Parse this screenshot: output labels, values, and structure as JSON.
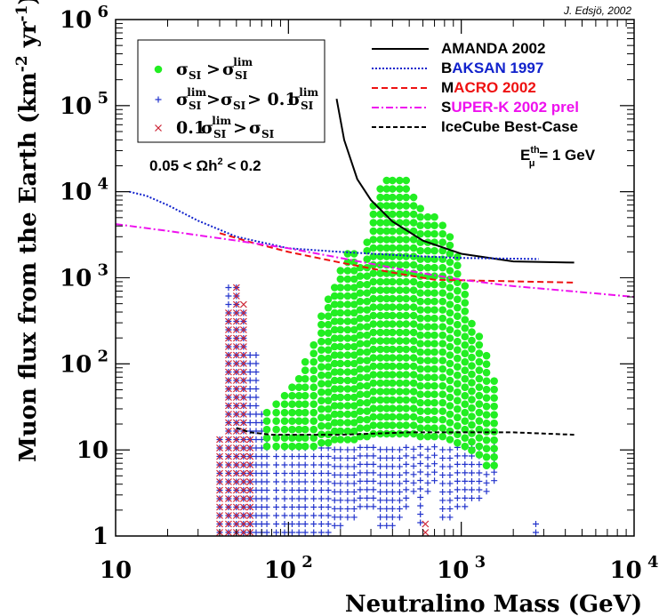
{
  "chart_data": {
    "type": "scatter",
    "credit": "J. Edsjö, 2002",
    "xlabel": "Neutralino Mass (GeV)",
    "ylabel": "Muon flux from the Earth (km^-2 yr^-1)",
    "xscale": "log",
    "yscale": "log",
    "xlim": [
      10,
      10000
    ],
    "ylim": [
      1,
      1000000
    ],
    "x_ticks": [
      {
        "value": 10,
        "base": "10",
        "exp": ""
      },
      {
        "value": 100,
        "base": "10",
        "exp": "2"
      },
      {
        "value": 1000,
        "base": "10",
        "exp": "3"
      },
      {
        "value": 10000,
        "base": "10",
        "exp": "4"
      }
    ],
    "y_ticks": [
      {
        "value": 1,
        "base": "1",
        "exp": ""
      },
      {
        "value": 10,
        "base": "10",
        "exp": ""
      },
      {
        "value": 100,
        "base": "10",
        "exp": "2"
      },
      {
        "value": 1000,
        "base": "10",
        "exp": "3"
      },
      {
        "value": 10000,
        "base": "10",
        "exp": "4"
      },
      {
        "value": 100000,
        "base": "10",
        "exp": "5"
      },
      {
        "value": 1000000,
        "base": "10",
        "exp": "6"
      }
    ],
    "legend_models": {
      "position": "top-left",
      "entries": [
        {
          "marker": "dot",
          "color": "#22ee22",
          "label": "σSI > σSI(lim)"
        },
        {
          "marker": "plus",
          "color": "#2233cc",
          "label": "σSI(lim) > σSI > 0.1σSI(lim)"
        },
        {
          "marker": "cross",
          "color": "#cc2233",
          "label": "0.1σSI(lim) > σSI"
        }
      ]
    },
    "annotation": "0.05 < Ωh² < 0.2",
    "threshold": "Eμth = 1 GeV",
    "legend_limits": {
      "position": "top-right",
      "entries": [
        {
          "name": "AMANDA 2002",
          "first": "AMANDA 2002",
          "rest": "",
          "first_color": "#000000",
          "rest_color": "#000000",
          "line_color": "#000000",
          "dash": ""
        },
        {
          "name": "BAKSAN 1997",
          "first": "B",
          "rest": "AKSAN 1997",
          "first_color": "#000000",
          "rest_color": "#1122cc",
          "line_color": "#1122cc",
          "dash": "2,2"
        },
        {
          "name": "MACRO 2002",
          "first": "M",
          "rest": "ACRO 2002",
          "first_color": "#000000",
          "rest_color": "#ee1111",
          "line_color": "#ee1111",
          "dash": "7,4"
        },
        {
          "name": "SUPER-K 2002 prel",
          "first": "S",
          "rest": "UPER-K 2002 prel",
          "first_color": "#000000",
          "rest_color": "#ee11ee",
          "line_color": "#ee11ee",
          "dash": "8,3,2,3"
        },
        {
          "name": "IceCube Best-Case",
          "first": "IceCube Best-Case",
          "rest": "",
          "first_color": "#000000",
          "rest_color": "#000000",
          "line_color": "#000000",
          "dash": "5,3"
        }
      ]
    },
    "series": [
      {
        "name": "AMANDA 2002",
        "color": "#000000",
        "dash": "",
        "points": [
          [
            190,
            120000
          ],
          [
            210,
            40000
          ],
          [
            250,
            14000
          ],
          [
            300,
            8000
          ],
          [
            400,
            4500
          ],
          [
            600,
            2700
          ],
          [
            1000,
            1900
          ],
          [
            2000,
            1550
          ],
          [
            4500,
            1500
          ]
        ]
      },
      {
        "name": "BAKSAN 1997",
        "color": "#1122cc",
        "dash": "2,2",
        "points": [
          [
            12,
            10000
          ],
          [
            15,
            9000
          ],
          [
            20,
            7000
          ],
          [
            30,
            4600
          ],
          [
            50,
            3000
          ],
          [
            100,
            2200
          ],
          [
            200,
            2000
          ],
          [
            500,
            1800
          ],
          [
            1000,
            1700
          ],
          [
            2800,
            1650
          ]
        ]
      },
      {
        "name": "MACRO 2002",
        "color": "#ee1111",
        "dash": "7,4",
        "points": [
          [
            40,
            3300
          ],
          [
            60,
            2600
          ],
          [
            100,
            2000
          ],
          [
            200,
            1500
          ],
          [
            400,
            1150
          ],
          [
            700,
            950
          ],
          [
            1500,
            920
          ],
          [
            4500,
            880
          ]
        ]
      },
      {
        "name": "SUPER-K 2002 prel",
        "color": "#ee11ee",
        "dash": "8,3,2,3",
        "points": [
          [
            10,
            4200
          ],
          [
            20,
            3500
          ],
          [
            50,
            2700
          ],
          [
            100,
            2200
          ],
          [
            200,
            1700
          ],
          [
            500,
            1200
          ],
          [
            1000,
            950
          ],
          [
            2000,
            800
          ],
          [
            5000,
            680
          ],
          [
            10000,
            600
          ]
        ]
      },
      {
        "name": "IceCube Best-Case",
        "color": "#000000",
        "dash": "5,3",
        "points": [
          [
            50,
            18
          ],
          [
            60,
            16
          ],
          [
            80,
            15
          ],
          [
            100,
            15
          ],
          [
            200,
            15
          ],
          [
            500,
            16
          ],
          [
            1000,
            16
          ],
          [
            2000,
            16
          ],
          [
            4500,
            15
          ]
        ]
      }
    ],
    "scatter_regions": {
      "green": [
        [
          75,
          10,
          30
        ],
        [
          85,
          10,
          40
        ],
        [
          95,
          10,
          50
        ],
        [
          105,
          10,
          60
        ],
        [
          115,
          10,
          80
        ],
        [
          125,
          10,
          110
        ],
        [
          140,
          10,
          170
        ],
        [
          155,
          11,
          400
        ],
        [
          170,
          11,
          600
        ],
        [
          185,
          12,
          900
        ],
        [
          200,
          12,
          1200
        ],
        [
          220,
          12,
          2000
        ],
        [
          240,
          12,
          2000
        ],
        [
          260,
          13,
          1400
        ],
        [
          285,
          13,
          2500
        ],
        [
          310,
          14,
          8000
        ],
        [
          340,
          14,
          12000
        ],
        [
          370,
          14,
          14000
        ],
        [
          400,
          14,
          14000
        ],
        [
          440,
          14,
          14000
        ],
        [
          480,
          14,
          13000
        ],
        [
          530,
          14,
          9000
        ],
        [
          580,
          13,
          7000
        ],
        [
          640,
          13,
          6000
        ],
        [
          700,
          13,
          5000
        ],
        [
          780,
          13,
          4000
        ],
        [
          860,
          12,
          3000
        ],
        [
          950,
          11,
          2000
        ],
        [
          1050,
          10,
          900
        ],
        [
          1150,
          9,
          350
        ],
        [
          1270,
          8,
          200
        ],
        [
          1400,
          6,
          120
        ],
        [
          1550,
          6,
          70
        ]
      ],
      "blue": [
        [
          40,
          1,
          15
        ],
        [
          45,
          1,
          900
        ],
        [
          50,
          1,
          900
        ],
        [
          55,
          1,
          400
        ],
        [
          60,
          1,
          140
        ],
        [
          65,
          1,
          140
        ],
        [
          70,
          1,
          30
        ],
        [
          75,
          1,
          15
        ],
        [
          85,
          1,
          12
        ],
        [
          95,
          1,
          12
        ],
        [
          105,
          1,
          12
        ],
        [
          115,
          1,
          11
        ],
        [
          125,
          1,
          11
        ],
        [
          140,
          1,
          11
        ],
        [
          155,
          1,
          11
        ],
        [
          170,
          1,
          11
        ],
        [
          185,
          1.2,
          11
        ],
        [
          200,
          1.2,
          11
        ],
        [
          220,
          1.5,
          11
        ],
        [
          240,
          1.5,
          11
        ],
        [
          260,
          2,
          11
        ],
        [
          285,
          2,
          11
        ],
        [
          310,
          2,
          11
        ],
        [
          340,
          1.2,
          11
        ],
        [
          370,
          1.2,
          11
        ],
        [
          400,
          1.2,
          11
        ],
        [
          440,
          1.5,
          11
        ],
        [
          480,
          2,
          11
        ],
        [
          530,
          3,
          11
        ],
        [
          580,
          1.3,
          11
        ],
        [
          640,
          3,
          11
        ],
        [
          700,
          4,
          11
        ],
        [
          780,
          1.5,
          11
        ],
        [
          860,
          1.5,
          11
        ],
        [
          950,
          2,
          11
        ],
        [
          1050,
          2,
          11
        ],
        [
          1150,
          2.5,
          11
        ],
        [
          1270,
          2.5,
          11
        ],
        [
          1400,
          3,
          11
        ],
        [
          1550,
          4,
          11
        ]
      ],
      "red": [
        [
          40,
          1,
          13
        ],
        [
          45,
          1,
          400
        ],
        [
          50,
          1,
          900
        ],
        [
          55,
          1,
          500
        ],
        [
          60,
          1,
          15
        ]
      ],
      "blue_extra": [
        [
          2700,
          1,
          1.5
        ],
        [
          2900,
          1,
          1
        ],
        [
          3400,
          1,
          1
        ]
      ],
      "red_extra": [
        [
          560,
          1,
          1
        ],
        [
          620,
          1,
          1.4
        ],
        [
          730,
          1,
          1
        ]
      ]
    }
  }
}
